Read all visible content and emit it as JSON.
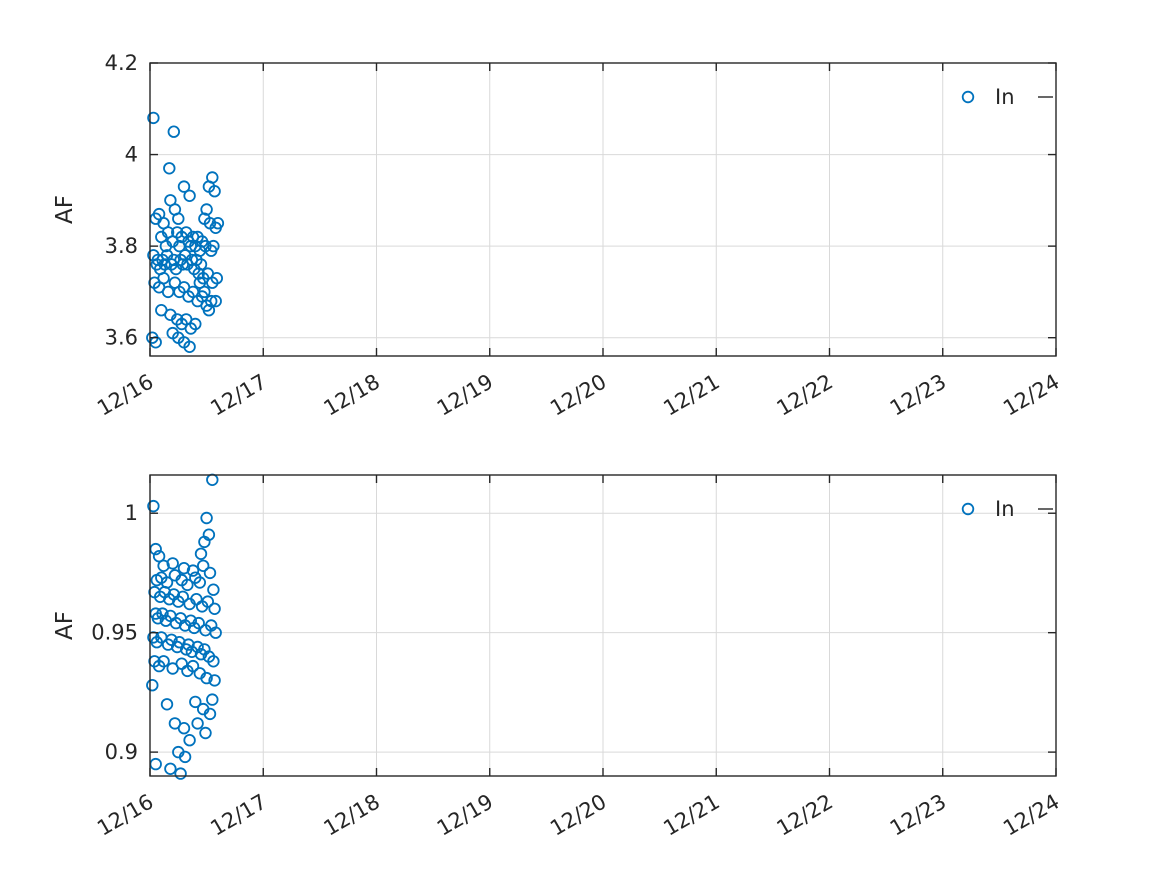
{
  "figure": {
    "background": "#ffffff",
    "axis_color": "#262626",
    "grid_color": "#d9d9d9",
    "marker_color": "#0072BD"
  },
  "chart_data": [
    {
      "type": "scatter",
      "title": "",
      "xlabel": "",
      "ylabel": "AF",
      "legend_position": "top-right",
      "grid": true,
      "x_tick_labels": [
        "12/16",
        "12/17",
        "12/18",
        "12/19",
        "12/20",
        "12/21",
        "12/22",
        "12/23",
        "12/24"
      ],
      "xlim_days": [
        0,
        8
      ],
      "ylim": [
        3.56,
        4.2
      ],
      "yticks": [
        3.6,
        3.8,
        4,
        4.2
      ],
      "ytick_labels": [
        "3.6",
        "3.8",
        "4",
        "4.2"
      ],
      "series": [
        {
          "name": "In",
          "marker": "open-circle",
          "color": "#0072BD",
          "points": [
            [
              0.03,
              4.08
            ],
            [
              0.21,
              4.05
            ],
            [
              0.17,
              3.97
            ],
            [
              0.3,
              3.93
            ],
            [
              0.55,
              3.95
            ],
            [
              0.52,
              3.93
            ],
            [
              0.57,
              3.92
            ],
            [
              0.35,
              3.91
            ],
            [
              0.18,
              3.9
            ],
            [
              0.22,
              3.88
            ],
            [
              0.05,
              3.86
            ],
            [
              0.08,
              3.87
            ],
            [
              0.12,
              3.85
            ],
            [
              0.25,
              3.86
            ],
            [
              0.48,
              3.86
            ],
            [
              0.5,
              3.88
            ],
            [
              0.53,
              3.85
            ],
            [
              0.58,
              3.84
            ],
            [
              0.6,
              3.85
            ],
            [
              0.1,
              3.82
            ],
            [
              0.14,
              3.8
            ],
            [
              0.16,
              3.83
            ],
            [
              0.2,
              3.81
            ],
            [
              0.24,
              3.83
            ],
            [
              0.26,
              3.8
            ],
            [
              0.28,
              3.82
            ],
            [
              0.32,
              3.83
            ],
            [
              0.34,
              3.81
            ],
            [
              0.36,
              3.8
            ],
            [
              0.38,
              3.82
            ],
            [
              0.4,
              3.8
            ],
            [
              0.42,
              3.82
            ],
            [
              0.44,
              3.79
            ],
            [
              0.46,
              3.81
            ],
            [
              0.49,
              3.8
            ],
            [
              0.54,
              3.79
            ],
            [
              0.56,
              3.8
            ],
            [
              0.03,
              3.78
            ],
            [
              0.06,
              3.76
            ],
            [
              0.07,
              3.77
            ],
            [
              0.09,
              3.75
            ],
            [
              0.11,
              3.77
            ],
            [
              0.13,
              3.76
            ],
            [
              0.15,
              3.78
            ],
            [
              0.19,
              3.76
            ],
            [
              0.21,
              3.77
            ],
            [
              0.23,
              3.75
            ],
            [
              0.27,
              3.77
            ],
            [
              0.29,
              3.76
            ],
            [
              0.31,
              3.78
            ],
            [
              0.33,
              3.76
            ],
            [
              0.37,
              3.77
            ],
            [
              0.39,
              3.75
            ],
            [
              0.41,
              3.77
            ],
            [
              0.43,
              3.74
            ],
            [
              0.45,
              3.76
            ],
            [
              0.47,
              3.73
            ],
            [
              0.51,
              3.74
            ],
            [
              0.55,
              3.72
            ],
            [
              0.59,
              3.73
            ],
            [
              0.04,
              3.72
            ],
            [
              0.08,
              3.71
            ],
            [
              0.12,
              3.73
            ],
            [
              0.16,
              3.7
            ],
            [
              0.22,
              3.72
            ],
            [
              0.26,
              3.7
            ],
            [
              0.3,
              3.71
            ],
            [
              0.34,
              3.69
            ],
            [
              0.38,
              3.7
            ],
            [
              0.42,
              3.68
            ],
            [
              0.46,
              3.69
            ],
            [
              0.5,
              3.67
            ],
            [
              0.54,
              3.68
            ],
            [
              0.58,
              3.68
            ],
            [
              0.1,
              3.66
            ],
            [
              0.18,
              3.65
            ],
            [
              0.24,
              3.64
            ],
            [
              0.28,
              3.63
            ],
            [
              0.32,
              3.64
            ],
            [
              0.36,
              3.62
            ],
            [
              0.4,
              3.63
            ],
            [
              0.44,
              3.72
            ],
            [
              0.48,
              3.7
            ],
            [
              0.52,
              3.66
            ],
            [
              0.2,
              3.61
            ],
            [
              0.25,
              3.6
            ],
            [
              0.3,
              3.59
            ],
            [
              0.35,
              3.58
            ],
            [
              0.02,
              3.6
            ],
            [
              0.05,
              3.59
            ]
          ]
        }
      ]
    },
    {
      "type": "scatter",
      "title": "",
      "xlabel": "",
      "ylabel": "AF",
      "legend_position": "top-right",
      "grid": true,
      "x_tick_labels": [
        "12/16",
        "12/17",
        "12/18",
        "12/19",
        "12/20",
        "12/21",
        "12/22",
        "12/23",
        "12/24"
      ],
      "xlim_days": [
        0,
        8
      ],
      "ylim": [
        0.89,
        1.016
      ],
      "yticks": [
        0.9,
        0.95,
        1
      ],
      "ytick_labels": [
        "0.9",
        "0.95",
        "1"
      ],
      "series": [
        {
          "name": "In",
          "marker": "open-circle",
          "color": "#0072BD",
          "points": [
            [
              0.55,
              1.014
            ],
            [
              0.03,
              1.003
            ],
            [
              0.5,
              0.998
            ],
            [
              0.52,
              0.991
            ],
            [
              0.48,
              0.988
            ],
            [
              0.05,
              0.985
            ],
            [
              0.08,
              0.982
            ],
            [
              0.45,
              0.983
            ],
            [
              0.12,
              0.978
            ],
            [
              0.2,
              0.979
            ],
            [
              0.3,
              0.977
            ],
            [
              0.38,
              0.976
            ],
            [
              0.47,
              0.978
            ],
            [
              0.53,
              0.975
            ],
            [
              0.06,
              0.972
            ],
            [
              0.1,
              0.973
            ],
            [
              0.15,
              0.971
            ],
            [
              0.22,
              0.974
            ],
            [
              0.28,
              0.972
            ],
            [
              0.33,
              0.97
            ],
            [
              0.4,
              0.973
            ],
            [
              0.44,
              0.971
            ],
            [
              0.56,
              0.968
            ],
            [
              0.04,
              0.967
            ],
            [
              0.09,
              0.965
            ],
            [
              0.13,
              0.967
            ],
            [
              0.17,
              0.964
            ],
            [
              0.21,
              0.966
            ],
            [
              0.25,
              0.963
            ],
            [
              0.29,
              0.965
            ],
            [
              0.35,
              0.962
            ],
            [
              0.41,
              0.964
            ],
            [
              0.46,
              0.961
            ],
            [
              0.51,
              0.963
            ],
            [
              0.57,
              0.96
            ],
            [
              0.05,
              0.958
            ],
            [
              0.07,
              0.956
            ],
            [
              0.11,
              0.958
            ],
            [
              0.14,
              0.955
            ],
            [
              0.18,
              0.957
            ],
            [
              0.23,
              0.954
            ],
            [
              0.27,
              0.956
            ],
            [
              0.31,
              0.953
            ],
            [
              0.36,
              0.955
            ],
            [
              0.39,
              0.952
            ],
            [
              0.43,
              0.954
            ],
            [
              0.49,
              0.951
            ],
            [
              0.54,
              0.953
            ],
            [
              0.58,
              0.95
            ],
            [
              0.03,
              0.948
            ],
            [
              0.06,
              0.946
            ],
            [
              0.1,
              0.948
            ],
            [
              0.16,
              0.945
            ],
            [
              0.19,
              0.947
            ],
            [
              0.24,
              0.944
            ],
            [
              0.26,
              0.946
            ],
            [
              0.32,
              0.943
            ],
            [
              0.34,
              0.945
            ],
            [
              0.37,
              0.942
            ],
            [
              0.42,
              0.944
            ],
            [
              0.45,
              0.941
            ],
            [
              0.48,
              0.943
            ],
            [
              0.52,
              0.94
            ],
            [
              0.56,
              0.938
            ],
            [
              0.04,
              0.938
            ],
            [
              0.08,
              0.936
            ],
            [
              0.12,
              0.938
            ],
            [
              0.2,
              0.935
            ],
            [
              0.28,
              0.937
            ],
            [
              0.33,
              0.934
            ],
            [
              0.38,
              0.936
            ],
            [
              0.44,
              0.933
            ],
            [
              0.5,
              0.931
            ],
            [
              0.02,
              0.928
            ],
            [
              0.57,
              0.93
            ],
            [
              0.55,
              0.922
            ],
            [
              0.15,
              0.92
            ],
            [
              0.4,
              0.921
            ],
            [
              0.47,
              0.918
            ],
            [
              0.53,
              0.916
            ],
            [
              0.22,
              0.912
            ],
            [
              0.3,
              0.91
            ],
            [
              0.42,
              0.912
            ],
            [
              0.49,
              0.908
            ],
            [
              0.35,
              0.905
            ],
            [
              0.25,
              0.9
            ],
            [
              0.31,
              0.898
            ],
            [
              0.05,
              0.895
            ],
            [
              0.18,
              0.893
            ],
            [
              0.27,
              0.891
            ]
          ]
        }
      ]
    }
  ]
}
